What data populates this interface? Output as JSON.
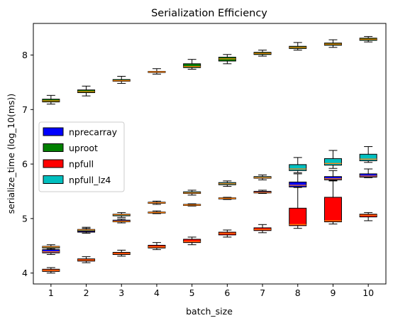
{
  "chart_data": {
    "type": "boxplot",
    "title": "Serialization Efficiency",
    "xlabel": "batch_size",
    "ylabel": "serialize_time (log_10(ms))",
    "categories": [
      "1",
      "2",
      "3",
      "4",
      "5",
      "6",
      "7",
      "8",
      "9",
      "10"
    ],
    "xlim": [
      0.5,
      10.5
    ],
    "ylim": [
      3.8,
      8.58
    ],
    "yticks": [
      4,
      5,
      6,
      7,
      8
    ],
    "legend_position": "center-left",
    "series": [
      {
        "name": "nprecarray",
        "color": "#0000ff",
        "boxes": [
          {
            "x": 1,
            "whislo": 4.34,
            "q1": 4.37,
            "med": 4.39,
            "q3": 4.43,
            "whishi": 4.46
          },
          {
            "x": 2,
            "whislo": 4.73,
            "q1": 4.75,
            "med": 4.77,
            "q3": 4.79,
            "whishi": 4.82
          },
          {
            "x": 3,
            "whislo": 4.92,
            "q1": 4.94,
            "med": 4.95,
            "q3": 4.97,
            "whishi": 4.99
          },
          {
            "x": 4,
            "whislo": 5.09,
            "q1": 5.1,
            "med": 5.11,
            "q3": 5.12,
            "whishi": 5.14
          },
          {
            "x": 5,
            "whislo": 5.23,
            "q1": 5.24,
            "med": 5.25,
            "q3": 5.26,
            "whishi": 5.27
          },
          {
            "x": 6,
            "whislo": 5.35,
            "q1": 5.36,
            "med": 5.37,
            "q3": 5.38,
            "whishi": 5.39
          },
          {
            "x": 7,
            "whislo": 5.46,
            "q1": 5.47,
            "med": 5.48,
            "q3": 5.5,
            "whishi": 5.52
          },
          {
            "x": 8,
            "whislo": 5.57,
            "q1": 5.58,
            "med": 5.61,
            "q3": 5.67,
            "whishi": 5.82
          },
          {
            "x": 9,
            "whislo": 5.69,
            "q1": 5.71,
            "med": 5.73,
            "q3": 5.77,
            "whishi": 5.88
          },
          {
            "x": 10,
            "whislo": 5.75,
            "q1": 5.76,
            "med": 5.78,
            "q3": 5.82,
            "whishi": 5.91
          }
        ]
      },
      {
        "name": "uproot",
        "color": "#008000",
        "boxes": [
          {
            "x": 1,
            "whislo": 7.1,
            "q1": 7.14,
            "med": 7.16,
            "q3": 7.19,
            "whishi": 7.26
          },
          {
            "x": 2,
            "whislo": 7.25,
            "q1": 7.31,
            "med": 7.33,
            "q3": 7.36,
            "whishi": 7.43
          },
          {
            "x": 3,
            "whislo": 7.48,
            "q1": 7.52,
            "med": 7.53,
            "q3": 7.55,
            "whishi": 7.61
          },
          {
            "x": 4,
            "whislo": 7.65,
            "q1": 7.68,
            "med": 7.69,
            "q3": 7.7,
            "whishi": 7.75
          },
          {
            "x": 5,
            "whislo": 7.74,
            "q1": 7.77,
            "med": 7.79,
            "q3": 7.84,
            "whishi": 7.92
          },
          {
            "x": 6,
            "whislo": 7.84,
            "q1": 7.89,
            "med": 7.93,
            "q3": 7.96,
            "whishi": 8.01
          },
          {
            "x": 7,
            "whislo": 7.98,
            "q1": 8.01,
            "med": 8.03,
            "q3": 8.05,
            "whishi": 8.09
          },
          {
            "x": 8,
            "whislo": 8.09,
            "q1": 8.12,
            "med": 8.14,
            "q3": 8.16,
            "whishi": 8.23
          },
          {
            "x": 9,
            "whislo": 8.14,
            "q1": 8.18,
            "med": 8.2,
            "q3": 8.22,
            "whishi": 8.28
          },
          {
            "x": 10,
            "whislo": 8.24,
            "q1": 8.27,
            "med": 8.29,
            "q3": 8.31,
            "whishi": 8.34
          }
        ]
      },
      {
        "name": "npfull",
        "color": "#ff0000",
        "boxes": [
          {
            "x": 1,
            "whislo": 4.0,
            "q1": 4.03,
            "med": 4.05,
            "q3": 4.07,
            "whishi": 4.1
          },
          {
            "x": 2,
            "whislo": 4.19,
            "q1": 4.22,
            "med": 4.24,
            "q3": 4.26,
            "whishi": 4.3
          },
          {
            "x": 3,
            "whislo": 4.31,
            "q1": 4.34,
            "med": 4.36,
            "q3": 4.38,
            "whishi": 4.42
          },
          {
            "x": 4,
            "whislo": 4.43,
            "q1": 4.46,
            "med": 4.48,
            "q3": 4.51,
            "whishi": 4.56
          },
          {
            "x": 5,
            "whislo": 4.52,
            "q1": 4.56,
            "med": 4.58,
            "q3": 4.62,
            "whishi": 4.66
          },
          {
            "x": 6,
            "whislo": 4.66,
            "q1": 4.7,
            "med": 4.73,
            "q3": 4.75,
            "whishi": 4.79
          },
          {
            "x": 7,
            "whislo": 4.74,
            "q1": 4.78,
            "med": 4.8,
            "q3": 4.83,
            "whishi": 4.89
          },
          {
            "x": 8,
            "whislo": 4.82,
            "q1": 4.87,
            "med": 4.89,
            "q3": 5.19,
            "whishi": 5.58
          },
          {
            "x": 9,
            "whislo": 4.9,
            "q1": 4.94,
            "med": 4.96,
            "q3": 5.39,
            "whishi": 5.7
          },
          {
            "x": 10,
            "whislo": 4.96,
            "q1": 5.03,
            "med": 5.06,
            "q3": 5.08,
            "whishi": 5.11
          }
        ]
      },
      {
        "name": "npfull_lz4",
        "color": "#00bfbf",
        "boxes": [
          {
            "x": 1,
            "whislo": 4.44,
            "q1": 4.46,
            "med": 4.48,
            "q3": 4.49,
            "whishi": 4.52
          },
          {
            "x": 2,
            "whislo": 4.75,
            "q1": 4.77,
            "med": 4.79,
            "q3": 4.8,
            "whishi": 4.84
          },
          {
            "x": 3,
            "whislo": 5.02,
            "q1": 5.05,
            "med": 5.07,
            "q3": 5.08,
            "whishi": 5.11
          },
          {
            "x": 4,
            "whislo": 5.26,
            "q1": 5.28,
            "med": 5.29,
            "q3": 5.3,
            "whishi": 5.32
          },
          {
            "x": 5,
            "whislo": 5.43,
            "q1": 5.46,
            "med": 5.47,
            "q3": 5.49,
            "whishi": 5.52
          },
          {
            "x": 6,
            "whislo": 5.59,
            "q1": 5.62,
            "med": 5.64,
            "q3": 5.66,
            "whishi": 5.69
          },
          {
            "x": 7,
            "whislo": 5.71,
            "q1": 5.74,
            "med": 5.75,
            "q3": 5.77,
            "whishi": 5.8
          },
          {
            "x": 8,
            "whislo": 5.84,
            "q1": 5.88,
            "med": 5.91,
            "q3": 5.99,
            "whishi": 6.12
          },
          {
            "x": 9,
            "whislo": 5.92,
            "q1": 5.98,
            "med": 6.01,
            "q3": 6.1,
            "whishi": 6.25
          },
          {
            "x": 10,
            "whislo": 6.03,
            "q1": 6.06,
            "med": 6.09,
            "q3": 6.18,
            "whishi": 6.32
          }
        ]
      }
    ]
  }
}
